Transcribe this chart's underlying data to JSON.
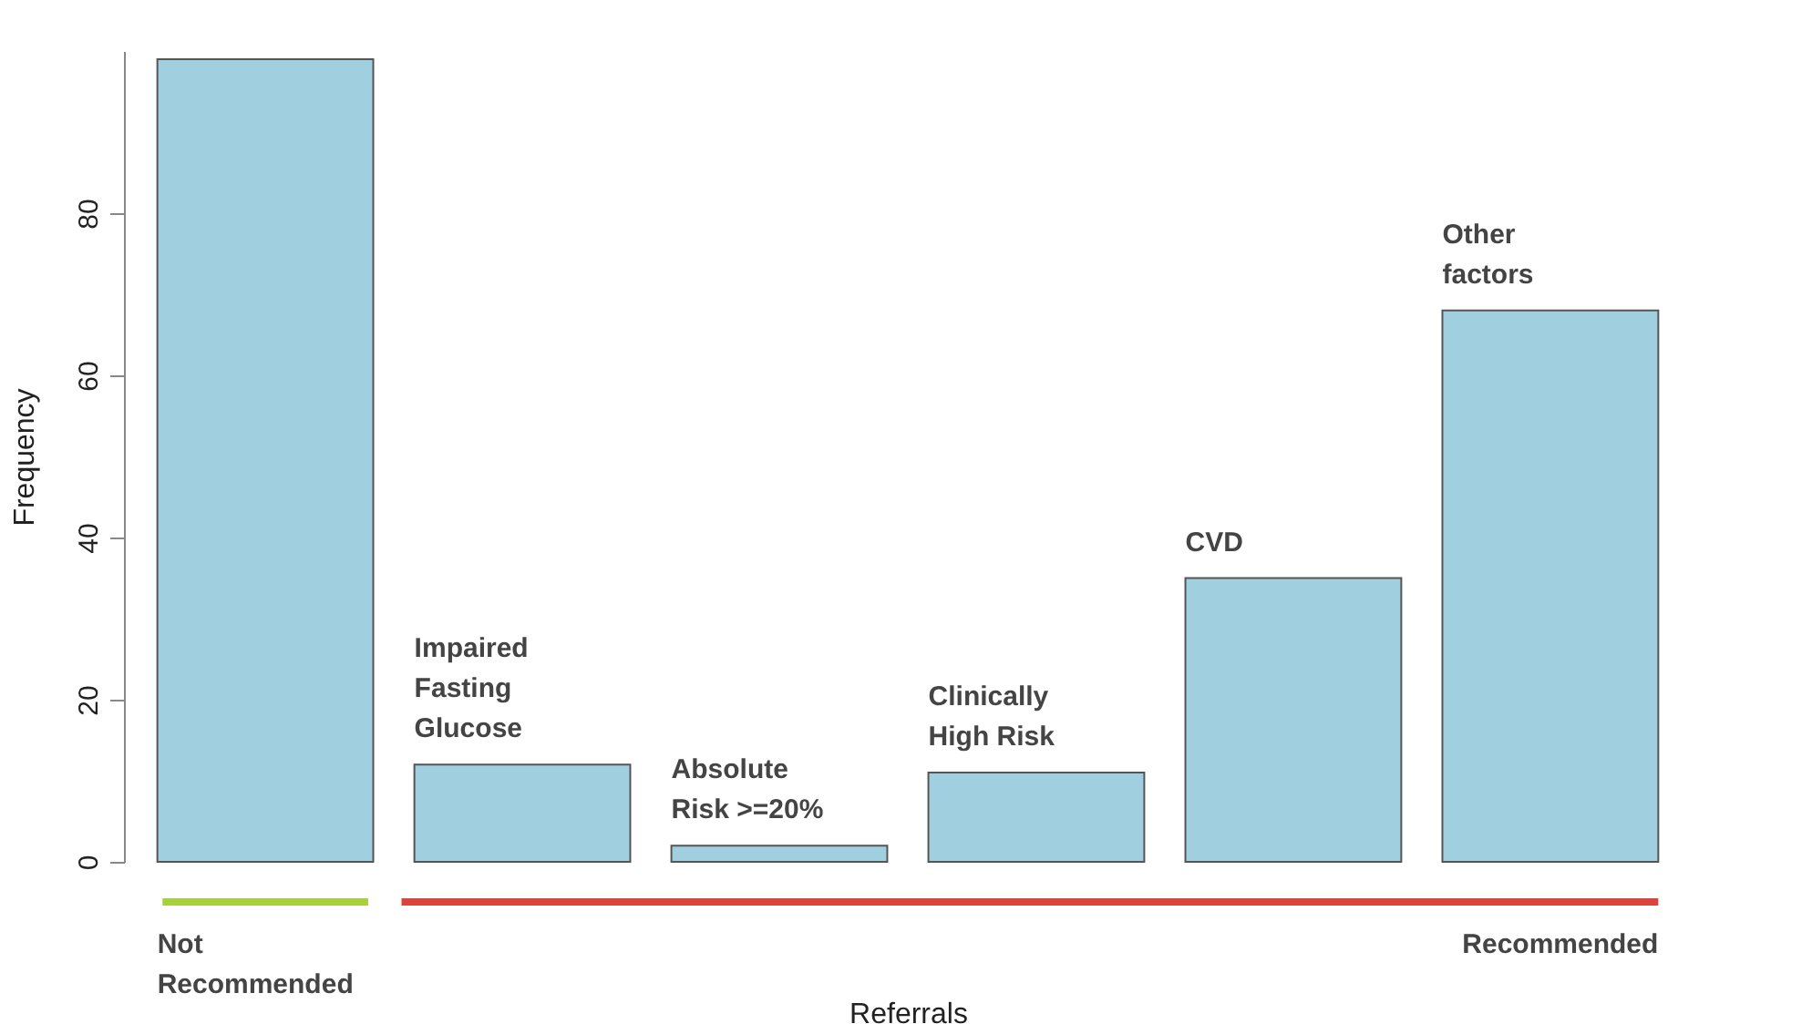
{
  "chart_data": {
    "type": "bar",
    "categories": [
      null,
      "Impaired\nFasting\nGlucose",
      "Absolute\nRisk >=20%",
      "Clinically\nHigh Risk",
      "CVD",
      "Other\nfactors"
    ],
    "values": [
      99,
      12,
      2,
      11,
      35,
      68
    ],
    "color": "#a0cfe0",
    "xlabel": "Referrals",
    "ylabel": "Frequency",
    "ylim": [
      0,
      100
    ],
    "yticks": [
      0,
      20,
      40,
      60,
      80
    ],
    "grid": false,
    "annotations": [
      "Not Recommended",
      "Recommended"
    ]
  }
}
